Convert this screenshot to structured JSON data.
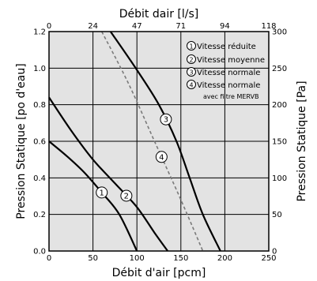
{
  "chart_data": {
    "type": "line",
    "xlabel": "Débit d'air  [pcm]",
    "x2label": "Débit dair [l/s]",
    "ylabel": "Pression Statique [po d'eau]",
    "y2label": "Pression Statique [Pa]",
    "xlim": [
      0,
      250
    ],
    "ylim": [
      0,
      1.2
    ],
    "x_ticks": [
      "0",
      "50",
      "100",
      "150",
      "200",
      "250"
    ],
    "y_ticks": [
      "0.0",
      "0.2",
      "0.4",
      "0.6",
      "0.8",
      "1.0",
      "1.2"
    ],
    "x2_ticks": [
      "0",
      "24",
      "47",
      "71",
      "94",
      "118"
    ],
    "y2_ticks": [
      "0",
      "50",
      "100",
      "150",
      "200",
      "250",
      "300"
    ],
    "grid": true,
    "legend_position": "top-right",
    "background_color": "#e3e3e3",
    "series": [
      {
        "name": "Vitesse réduite",
        "marker": "1",
        "style": "solid",
        "points": [
          [
            0,
            0.6
          ],
          [
            20,
            0.52
          ],
          [
            40,
            0.43
          ],
          [
            60,
            0.32
          ],
          [
            80,
            0.2
          ],
          [
            100,
            0.0
          ]
        ]
      },
      {
        "name": "Vitesse moyenne",
        "marker": "2",
        "style": "solid",
        "points": [
          [
            0,
            0.84
          ],
          [
            25,
            0.66
          ],
          [
            50,
            0.5
          ],
          [
            75,
            0.37
          ],
          [
            100,
            0.24
          ],
          [
            120,
            0.1
          ],
          [
            135,
            0.0
          ]
        ]
      },
      {
        "name": "Vitesse normale",
        "marker": "3",
        "style": "solid",
        "points": [
          [
            70,
            1.2
          ],
          [
            100,
            0.99
          ],
          [
            125,
            0.8
          ],
          [
            145,
            0.6
          ],
          [
            160,
            0.4
          ],
          [
            175,
            0.2
          ],
          [
            195,
            0.0
          ]
        ]
      },
      {
        "name": "Vitesse normale",
        "name_line2": "avec filtre MERVB",
        "marker": "4",
        "style": "dashed",
        "points": [
          [
            60,
            1.2
          ],
          [
            90,
            0.92
          ],
          [
            120,
            0.6
          ],
          [
            150,
            0.28
          ],
          [
            175,
            0.0
          ]
        ]
      }
    ]
  }
}
